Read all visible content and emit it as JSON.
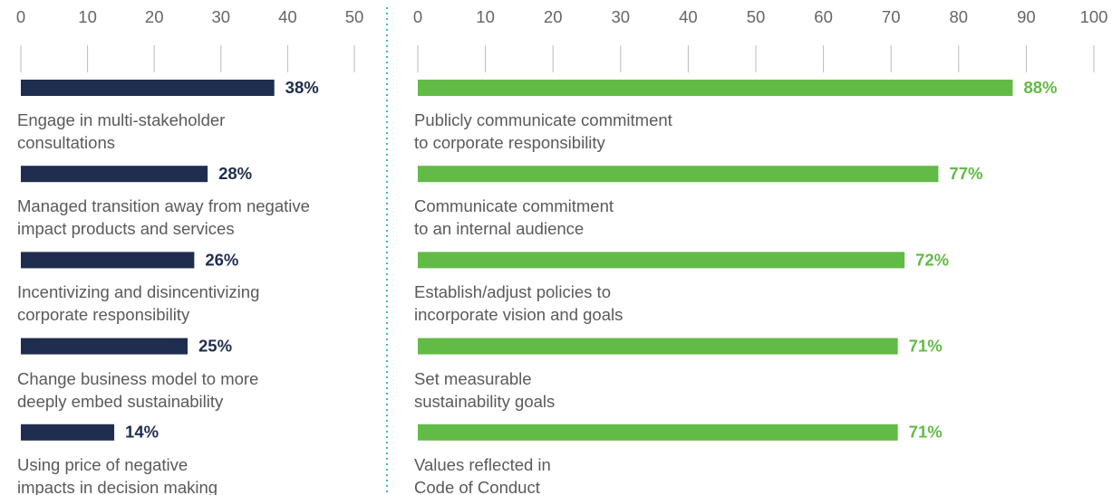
{
  "chart_data": [
    {
      "type": "bar",
      "orientation": "horizontal",
      "color": "#1f2d4e",
      "categories": [
        "Engage in multi-stakeholder\nconsultations",
        "Managed transition away from negative\nimpact products and services",
        "Incentivizing and disincentivizing\ncorporate responsibility",
        "Change business model to more\ndeeply embed sustainability",
        "Using price of negative\nimpacts in decision making"
      ],
      "values": [
        38,
        28,
        26,
        25,
        14
      ],
      "value_labels": [
        "38%",
        "28%",
        "26%",
        "25%",
        "14%"
      ],
      "xlim": [
        0,
        50
      ],
      "xticks": [
        0,
        10,
        20,
        30,
        40,
        50
      ],
      "grid": true
    },
    {
      "type": "bar",
      "orientation": "horizontal",
      "color": "#62bb46",
      "categories": [
        "Publicly communicate commitment\nto corporate responsibility",
        "Communicate commitment\nto an internal audience",
        "Establish/adjust policies to\nincorporate vision and goals",
        "Set measurable\nsustainability goals",
        "Values reflected in\nCode of Conduct"
      ],
      "values": [
        88,
        77,
        72,
        71,
        71
      ],
      "value_labels": [
        "88%",
        "77%",
        "72%",
        "71%",
        "71%"
      ],
      "xlim": [
        0,
        100
      ],
      "xticks": [
        0,
        10,
        20,
        30,
        40,
        50,
        60,
        70,
        80,
        90,
        100
      ],
      "grid": true
    }
  ]
}
